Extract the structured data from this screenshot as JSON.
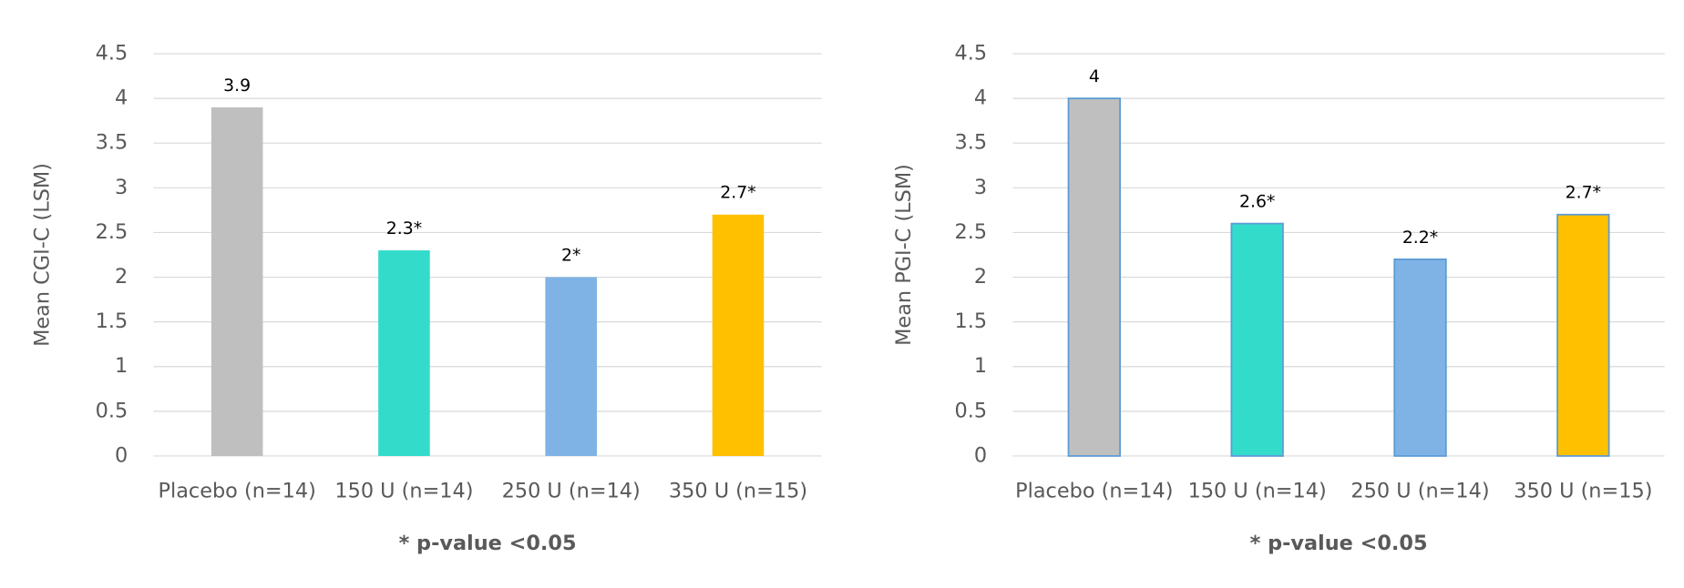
{
  "chart_data": [
    {
      "type": "bar",
      "ylabel": "Mean CGI-C (LSM)",
      "note": "* p-value <0.05",
      "categories": [
        "Placebo (n=14)",
        "150 U (n=14)",
        "250 U (n=14)",
        "350 U (n=15)"
      ],
      "values": [
        3.9,
        2.3,
        2,
        2.7
      ],
      "value_labels": [
        "3.9",
        "2.3*",
        "2*",
        "2.7*"
      ],
      "colors": [
        "#bfbfbf",
        "#33dbcb",
        "#7fb2e5",
        "#ffc000"
      ],
      "ylim": [
        0,
        4.5
      ],
      "yticks": [
        0,
        0.5,
        1,
        1.5,
        2,
        2.5,
        3,
        3.5,
        4,
        4.5
      ],
      "grid": true
    },
    {
      "type": "bar",
      "ylabel": "Mean PGI-C (LSM)",
      "note": "* p-value <0.05",
      "categories": [
        "Placebo (n=14)",
        "150 U (n=14)",
        "250 U (n=14)",
        "350 U (n=15)"
      ],
      "values": [
        4,
        2.6,
        2.2,
        2.7
      ],
      "value_labels": [
        "4",
        "2.6*",
        "2.2*",
        "2.7*"
      ],
      "colors": [
        "#bfbfbf",
        "#33dbcb",
        "#7fb2e5",
        "#ffc000"
      ],
      "edgecolor": "#5b9bd5",
      "ylim": [
        0,
        4.5
      ],
      "yticks": [
        0,
        0.5,
        1,
        1.5,
        2,
        2.5,
        3,
        3.5,
        4,
        4.5
      ],
      "grid": true
    }
  ]
}
